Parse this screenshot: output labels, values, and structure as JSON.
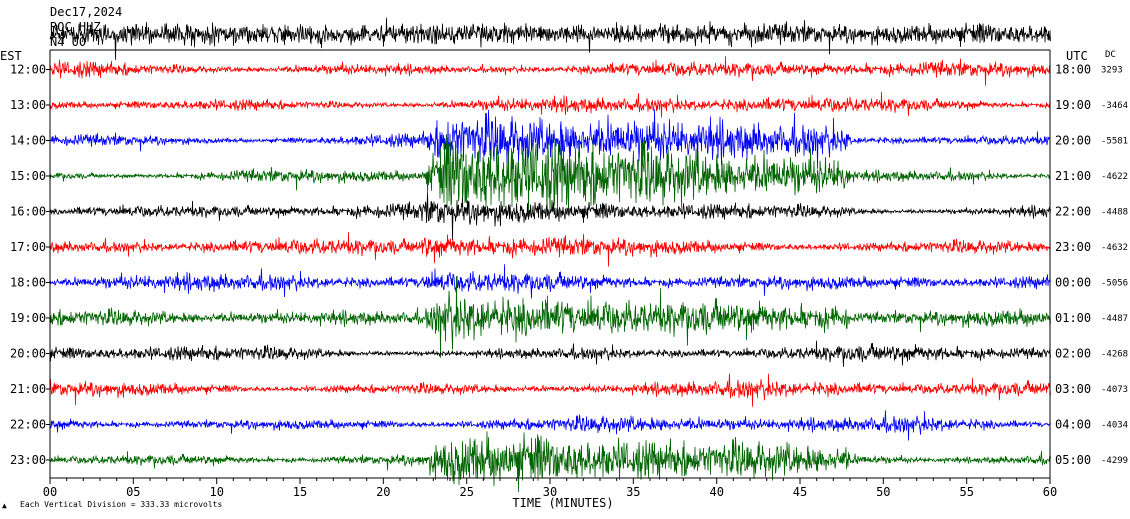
{
  "header": {
    "date": "Dec17,2024",
    "station": "ROC HHZ",
    "network": "N4 00",
    "left_timezone": "EST",
    "right_timezone": "UTC",
    "dc_header": "DC"
  },
  "footer": {
    "scale_note": "Each Vertical Division =  333.33 microvolts",
    "xlabel": "TIME (MINUTES)"
  },
  "colors": {
    "black": "#000000",
    "red": "#ff0000",
    "blue": "#0000ff",
    "green": "#006400"
  },
  "chart_data": {
    "type": "line",
    "title": "",
    "xlabel": "TIME (MINUTES)",
    "ylabel": "",
    "xlim": [
      0,
      60
    ],
    "x_ticks": [
      "00",
      "05",
      "10",
      "15",
      "20",
      "25",
      "30",
      "35",
      "40",
      "45",
      "50",
      "55",
      "60"
    ],
    "color_cycle": [
      "#000000",
      "#ff0000",
      "#0000ff",
      "#006400"
    ],
    "rows": [
      {
        "est": "",
        "utc": "",
        "dc": "",
        "color": "#000000"
      },
      {
        "est": "12:00",
        "utc": "18:00",
        "dc": "3293",
        "color": "#ff0000"
      },
      {
        "est": "13:00",
        "utc": "19:00",
        "dc": "-3464",
        "color": "#ff0000"
      },
      {
        "est": "14:00",
        "utc": "20:00",
        "dc": "-5581",
        "color": "#0000ff"
      },
      {
        "est": "15:00",
        "utc": "21:00",
        "dc": "-4622",
        "color": "#006400"
      },
      {
        "est": "16:00",
        "utc": "22:00",
        "dc": "-4488",
        "color": "#000000"
      },
      {
        "est": "17:00",
        "utc": "23:00",
        "dc": "-4632",
        "color": "#ff0000"
      },
      {
        "est": "18:00",
        "utc": "00:00",
        "dc": "-5056",
        "color": "#0000ff"
      },
      {
        "est": "19:00",
        "utc": "01:00",
        "dc": "-4487",
        "color": "#006400"
      },
      {
        "est": "20:00",
        "utc": "02:00",
        "dc": "-4268",
        "color": "#000000"
      },
      {
        "est": "21:00",
        "utc": "03:00",
        "dc": "-4073",
        "color": "#ff0000"
      },
      {
        "est": "22:00",
        "utc": "04:00",
        "dc": "-4034",
        "color": "#0000ff"
      },
      {
        "est": "23:00",
        "utc": "05:00",
        "dc": "-4299",
        "color": "#006400"
      }
    ],
    "events": [
      {
        "start_min": 22.3,
        "end_min": 48.0,
        "description_color": "#006400"
      },
      {
        "start_min": 40.0,
        "end_min": 41.0,
        "description_color": "#006400"
      }
    ]
  }
}
